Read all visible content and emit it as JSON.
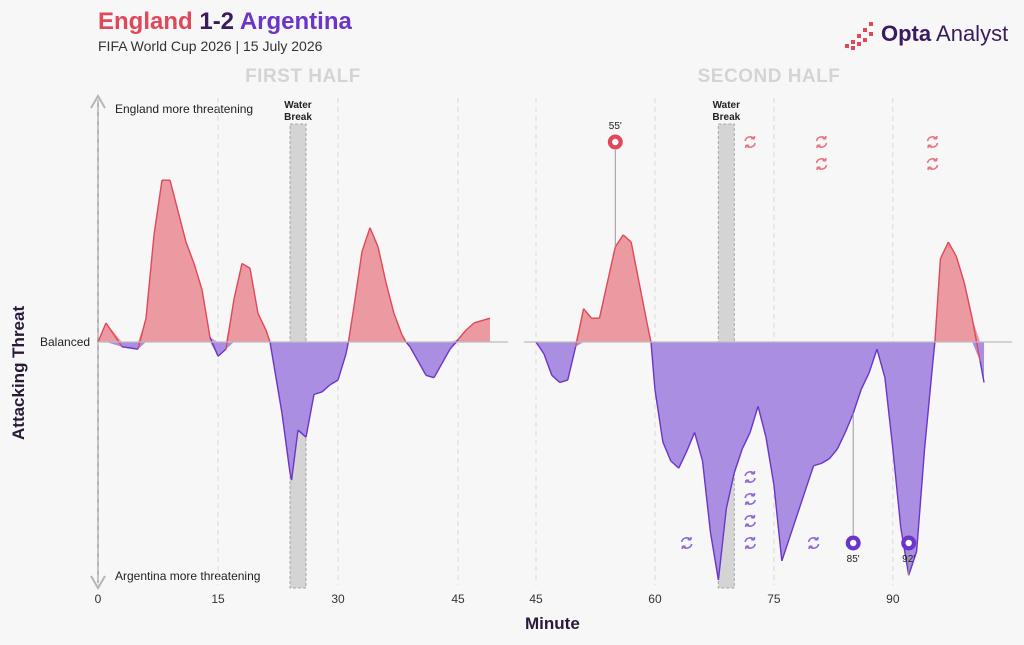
{
  "header": {
    "team_home": "England",
    "score": "1-2",
    "team_away": "Argentina",
    "subtitle": "FIFA World Cup 2026 | 15 July 2026"
  },
  "logo": {
    "brand": "Opta",
    "product": "Analyst"
  },
  "colors": {
    "england": "#e0485a",
    "argentina": "#6b35c9",
    "england_fill": "#ea9aa0",
    "argentina_fill": "#a98ee2",
    "axis": "#b5b5b5"
  },
  "chart_data": {
    "type": "area",
    "title": "England 1-2 Argentina",
    "subtitle": "FIFA World Cup 2026 | 15 July 2026",
    "xlabel": "Minute",
    "ylabel": "Attacking Threat",
    "y_top_label": "England more threatening",
    "y_mid_label": "Balanced",
    "y_bottom_label": "Argentina more threatening",
    "ylim": [
      -1,
      1
    ],
    "grid": "vertical dashed every 15 minutes",
    "panels": [
      {
        "name": "FIRST HALF",
        "xlim": [
          0,
          52
        ],
        "ticks": [
          0,
          15,
          30,
          45
        ],
        "water_break": {
          "label": "Water Break",
          "minute": 25
        },
        "series": [
          {
            "x": 0,
            "y": 0
          },
          {
            "x": 1,
            "y": 0.08
          },
          {
            "x": 3,
            "y": -0.02
          },
          {
            "x": 5,
            "y": -0.03
          },
          {
            "x": 6,
            "y": 0.1
          },
          {
            "x": 7,
            "y": 0.45
          },
          {
            "x": 8,
            "y": 0.68
          },
          {
            "x": 9,
            "y": 0.68
          },
          {
            "x": 10,
            "y": 0.55
          },
          {
            "x": 11,
            "y": 0.42
          },
          {
            "x": 12,
            "y": 0.33
          },
          {
            "x": 13,
            "y": 0.22
          },
          {
            "x": 14,
            "y": 0.02
          },
          {
            "x": 15,
            "y": -0.06
          },
          {
            "x": 16,
            "y": -0.03
          },
          {
            "x": 17,
            "y": 0.18
          },
          {
            "x": 18,
            "y": 0.33
          },
          {
            "x": 19,
            "y": 0.31
          },
          {
            "x": 20,
            "y": 0.12
          },
          {
            "x": 21,
            "y": 0.05
          },
          {
            "x": 21.5,
            "y": 0
          },
          {
            "x": 22,
            "y": -0.1
          },
          {
            "x": 23,
            "y": -0.3
          },
          {
            "x": 24,
            "y": -0.55
          },
          {
            "x": 24.2,
            "y": -0.58
          },
          {
            "x": 25,
            "y": -0.37
          },
          {
            "x": 26,
            "y": -0.4
          },
          {
            "x": 27,
            "y": -0.22
          },
          {
            "x": 28,
            "y": -0.21
          },
          {
            "x": 29,
            "y": -0.18
          },
          {
            "x": 30,
            "y": -0.16
          },
          {
            "x": 31,
            "y": -0.05
          },
          {
            "x": 31.3,
            "y": 0
          },
          {
            "x": 32,
            "y": 0.15
          },
          {
            "x": 33,
            "y": 0.38
          },
          {
            "x": 34,
            "y": 0.48
          },
          {
            "x": 35,
            "y": 0.4
          },
          {
            "x": 36,
            "y": 0.25
          },
          {
            "x": 37,
            "y": 0.12
          },
          {
            "x": 38,
            "y": 0.03
          },
          {
            "x": 38.5,
            "y": 0
          },
          {
            "x": 39,
            "y": -0.02
          },
          {
            "x": 40,
            "y": -0.08
          },
          {
            "x": 41,
            "y": -0.14
          },
          {
            "x": 42,
            "y": -0.15
          },
          {
            "x": 43,
            "y": -0.09
          },
          {
            "x": 44,
            "y": -0.03
          },
          {
            "x": 45,
            "y": 0.01
          },
          {
            "x": 46,
            "y": 0.05
          },
          {
            "x": 47,
            "y": 0.08
          },
          {
            "x": 49,
            "y": 0.1
          }
        ],
        "events": []
      },
      {
        "name": "SECOND HALF",
        "xlim": [
          44,
          104
        ],
        "ticks": [
          45,
          60,
          75,
          90
        ],
        "water_break": {
          "label": "Water Break",
          "minute": 69
        },
        "series": [
          {
            "x": 45,
            "y": 0
          },
          {
            "x": 46,
            "y": -0.05
          },
          {
            "x": 47,
            "y": -0.14
          },
          {
            "x": 48,
            "y": -0.17
          },
          {
            "x": 49,
            "y": -0.16
          },
          {
            "x": 50,
            "y": -0.02
          },
          {
            "x": 51,
            "y": 0.14
          },
          {
            "x": 52,
            "y": 0.1
          },
          {
            "x": 53,
            "y": 0.1
          },
          {
            "x": 54,
            "y": 0.25
          },
          {
            "x": 55,
            "y": 0.4
          },
          {
            "x": 56,
            "y": 0.45
          },
          {
            "x": 57,
            "y": 0.42
          },
          {
            "x": 58,
            "y": 0.25
          },
          {
            "x": 59,
            "y": 0.08
          },
          {
            "x": 59.5,
            "y": 0
          },
          {
            "x": 60,
            "y": -0.2
          },
          {
            "x": 61,
            "y": -0.42
          },
          {
            "x": 62,
            "y": -0.5
          },
          {
            "x": 63,
            "y": -0.53
          },
          {
            "x": 64,
            "y": -0.46
          },
          {
            "x": 65,
            "y": -0.38
          },
          {
            "x": 66,
            "y": -0.5
          },
          {
            "x": 67,
            "y": -0.8
          },
          {
            "x": 68,
            "y": -1.0
          },
          {
            "x": 69,
            "y": -0.7
          },
          {
            "x": 70,
            "y": -0.55
          },
          {
            "x": 71,
            "y": -0.45
          },
          {
            "x": 72,
            "y": -0.38
          },
          {
            "x": 73,
            "y": -0.27
          },
          {
            "x": 74,
            "y": -0.4
          },
          {
            "x": 75,
            "y": -0.6
          },
          {
            "x": 76,
            "y": -0.92
          },
          {
            "x": 77,
            "y": -0.82
          },
          {
            "x": 78,
            "y": -0.72
          },
          {
            "x": 79,
            "y": -0.62
          },
          {
            "x": 80,
            "y": -0.52
          },
          {
            "x": 81,
            "y": -0.51
          },
          {
            "x": 82,
            "y": -0.49
          },
          {
            "x": 83,
            "y": -0.45
          },
          {
            "x": 84,
            "y": -0.38
          },
          {
            "x": 85,
            "y": -0.3
          },
          {
            "x": 86,
            "y": -0.2
          },
          {
            "x": 87,
            "y": -0.13
          },
          {
            "x": 88,
            "y": -0.03
          },
          {
            "x": 89,
            "y": -0.15
          },
          {
            "x": 90,
            "y": -0.45
          },
          {
            "x": 91,
            "y": -0.78
          },
          {
            "x": 92,
            "y": -0.98
          },
          {
            "x": 93,
            "y": -0.88
          },
          {
            "x": 94,
            "y": -0.45
          },
          {
            "x": 95,
            "y": -0.1
          },
          {
            "x": 95.3,
            "y": 0
          },
          {
            "x": 96,
            "y": 0.35
          },
          {
            "x": 97,
            "y": 0.42
          },
          {
            "x": 98,
            "y": 0.36
          },
          {
            "x": 99,
            "y": 0.25
          },
          {
            "x": 100,
            "y": 0.1
          },
          {
            "x": 101,
            "y": -0.08
          },
          {
            "x": 101.5,
            "y": -0.17
          }
        ],
        "events": [
          {
            "type": "goal",
            "team": "England",
            "minute": 55,
            "label": "55'"
          },
          {
            "type": "goal",
            "team": "Argentina",
            "minute": 85,
            "label": "85'"
          },
          {
            "type": "goal",
            "team": "Argentina",
            "minute": 92,
            "label": "92'"
          },
          {
            "type": "substitution",
            "team": "England",
            "minute": 72,
            "count": 1
          },
          {
            "type": "substitution",
            "team": "England",
            "minute": 81,
            "count": 2
          },
          {
            "type": "substitution",
            "team": "England",
            "minute": 95,
            "count": 2
          },
          {
            "type": "substitution",
            "team": "Argentina",
            "minute": 64,
            "count": 1
          },
          {
            "type": "substitution",
            "team": "Argentina",
            "minute": 72,
            "count": 4
          },
          {
            "type": "substitution",
            "team": "Argentina",
            "minute": 80,
            "count": 1
          }
        ]
      }
    ]
  }
}
